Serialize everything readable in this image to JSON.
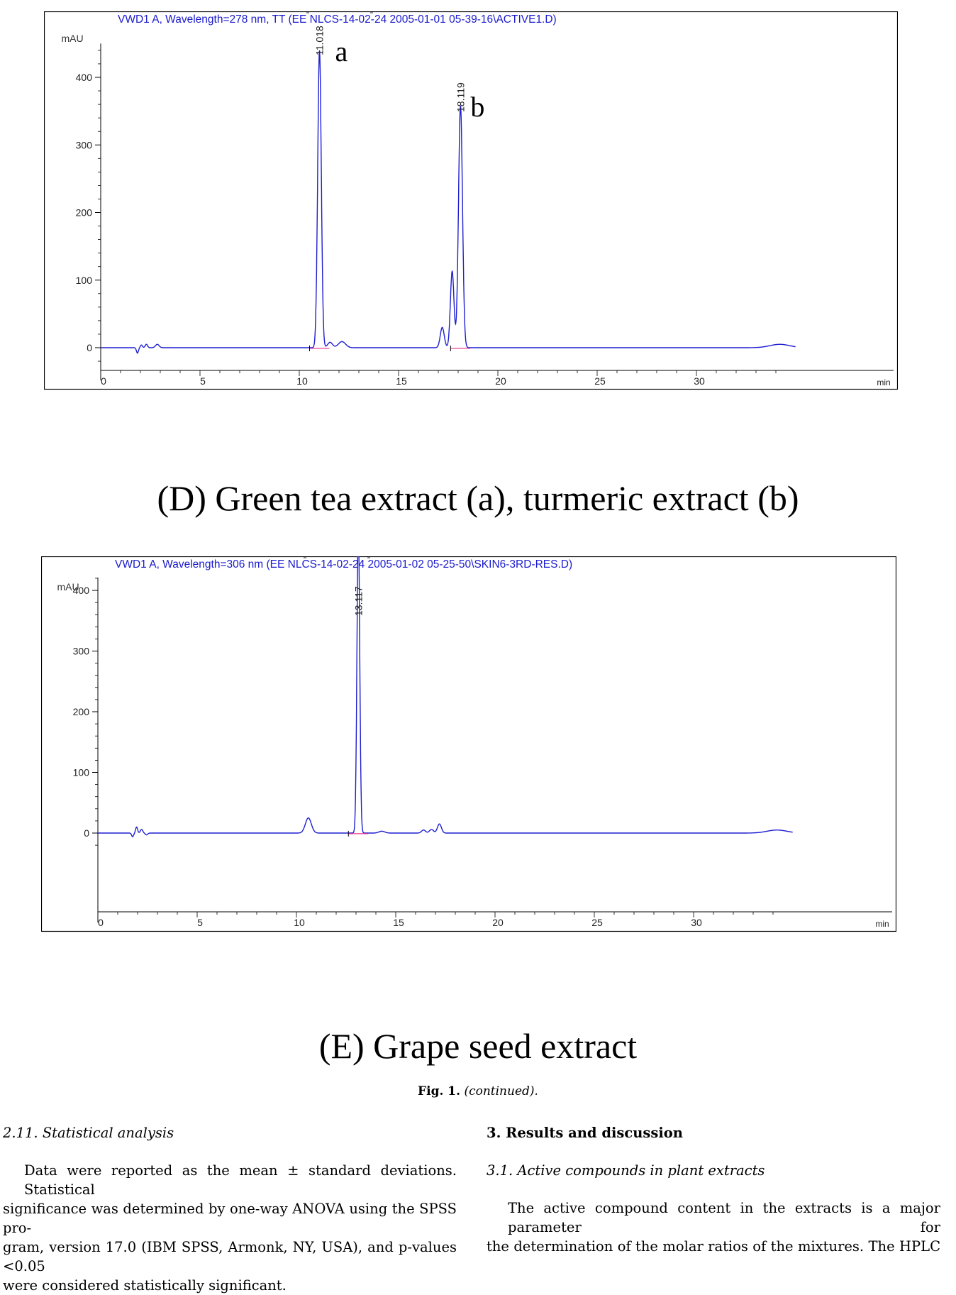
{
  "charts": [
    {
      "header": "VWD1 A, Wavelength=278 nm, TT (EE NLCS-14-02-24 2005-01-01 05-39-16\\ACTIVE1.D)",
      "y_unit": "mAU",
      "x_unit": "min",
      "peak_labels": [
        "11.018",
        "18.119"
      ],
      "letters": [
        "a",
        "b"
      ]
    },
    {
      "header": "VWD1 A, Wavelength=306 nm (EE NLCS-14-02-24 2005-01-02 05-25-50\\SKIN6-3RD-RES.D)",
      "y_unit": "mAU",
      "x_unit": "min",
      "peak_labels": [
        "13.117"
      ],
      "letters": []
    }
  ],
  "chart_data": [
    {
      "type": "line",
      "title": "VWD1 A, Wavelength=278 nm, TT (EE NLCS-14-02-24 2005-01-01 05-39-16\\ACTIVE1.D)",
      "xlabel": "min",
      "ylabel": "mAU",
      "xlim": [
        0,
        35
      ],
      "ylim": [
        -20,
        450
      ],
      "x_ticks": [
        0,
        5,
        10,
        15,
        20,
        25,
        30
      ],
      "y_ticks": [
        0,
        100,
        200,
        300,
        400
      ],
      "series_color": "#1f1fd0",
      "baseline_color": "#e8338f",
      "peaks": [
        {
          "rt": 1.85,
          "height": -8,
          "width": 0.05
        },
        {
          "rt": 2.05,
          "height": 4,
          "width": 0.05
        },
        {
          "rt": 2.3,
          "height": 5,
          "width": 0.06
        },
        {
          "rt": 2.85,
          "height": 5,
          "width": 0.09
        },
        {
          "rt": 11.018,
          "height": 440,
          "width": 0.09
        },
        {
          "rt": 11.55,
          "height": 8,
          "width": 0.12
        },
        {
          "rt": 12.15,
          "height": 9,
          "width": 0.18
        },
        {
          "rt": 17.2,
          "height": 30,
          "width": 0.1
        },
        {
          "rt": 17.7,
          "height": 113,
          "width": 0.09
        },
        {
          "rt": 18.119,
          "height": 358,
          "width": 0.1
        },
        {
          "rt": 34.2,
          "height": 5,
          "width": 0.5
        }
      ],
      "peak_annotations": [
        {
          "rt": 11.018,
          "label": "11.018",
          "letter": "a"
        },
        {
          "rt": 18.119,
          "label": "18.119",
          "letter": "b"
        }
      ]
    },
    {
      "type": "line",
      "title": "VWD1 A, Wavelength=306 nm (EE NLCS-14-02-24 2005-01-02 05-25-50\\SKIN6-3RD-RES.D)",
      "xlabel": "min",
      "ylabel": "mAU",
      "xlim": [
        0,
        35
      ],
      "ylim": [
        -20,
        520
      ],
      "x_ticks": [
        0,
        5,
        10,
        15,
        20,
        25,
        30
      ],
      "y_ticks": [
        0,
        100,
        200,
        300,
        400
      ],
      "series_color": "#1f1fd0",
      "baseline_color": "#e8338f",
      "peaks": [
        {
          "rt": 1.75,
          "height": -6,
          "width": 0.05
        },
        {
          "rt": 1.95,
          "height": 10,
          "width": 0.05
        },
        {
          "rt": 2.2,
          "height": 6,
          "width": 0.06
        },
        {
          "rt": 2.45,
          "height": -3,
          "width": 0.06
        },
        {
          "rt": 10.6,
          "height": 25,
          "width": 0.15
        },
        {
          "rt": 13.117,
          "height": 500,
          "width": 0.07
        },
        {
          "rt": 14.3,
          "height": 3,
          "width": 0.15
        },
        {
          "rt": 16.4,
          "height": 5,
          "width": 0.1
        },
        {
          "rt": 16.8,
          "height": 6,
          "width": 0.1
        },
        {
          "rt": 17.2,
          "height": 15,
          "width": 0.1
        },
        {
          "rt": 34.2,
          "height": 5,
          "width": 0.5
        }
      ],
      "peak_annotations": [
        {
          "rt": 13.117,
          "label": "13.117",
          "letter": ""
        }
      ]
    }
  ],
  "captions": {
    "panel_d": "(D) Green tea extract (a), turmeric extract (b)",
    "panel_e": "(E) Grape seed extract",
    "fig_label": "Fig. 1.",
    "fig_note": "(continued)."
  },
  "left_column": {
    "heading": "2.11.  Statistical analysis",
    "lines": [
      "Data were reported as the mean ± standard deviations. Statistical",
      "significance was determined by one-way ANOVA using the SPSS pro-",
      "gram, version 17.0 (IBM SPSS, Armonk, NY, USA), and p-values <0.05",
      "were considered statistically significant."
    ]
  },
  "right_column": {
    "heading": "3.  Results and discussion",
    "subheading": "3.1.  Active compounds in plant extracts",
    "lines": [
      "The active compound content in the extracts is a major parameter for",
      "the determination of the molar ratios of the mixtures. The HPLC"
    ]
  }
}
